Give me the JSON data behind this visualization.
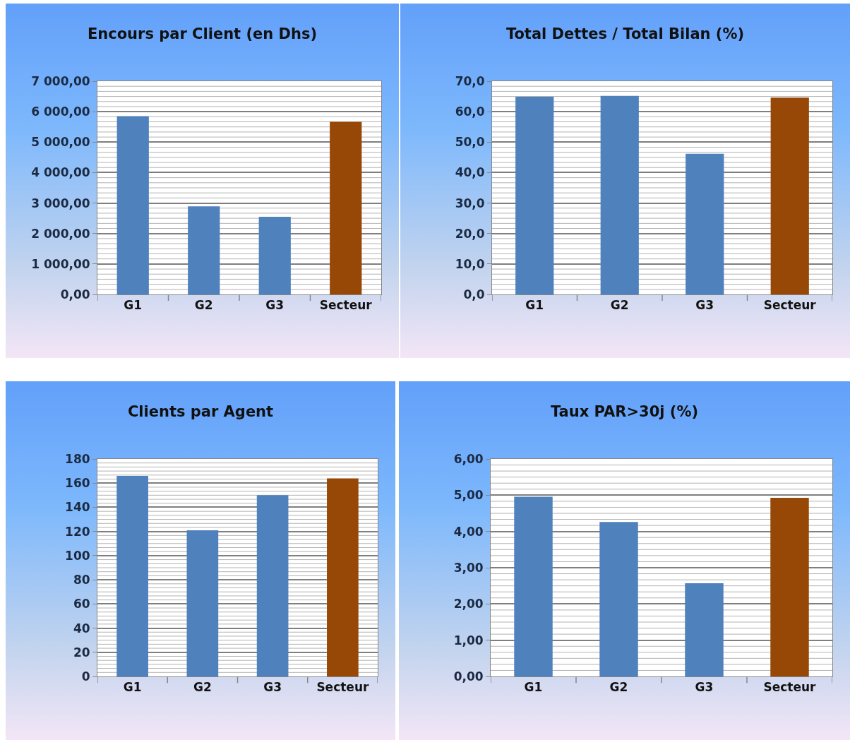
{
  "chart_data": [
    {
      "type": "bar",
      "title": "Encours par Client (en Dhs)",
      "categories": [
        "G1",
        "G2",
        "G3",
        "Secteur"
      ],
      "values": [
        5850,
        2890,
        2550,
        5670
      ],
      "colors": [
        "#4f81bd",
        "#4f81bd",
        "#4f81bd",
        "#974706"
      ],
      "ylim": [
        0,
        7000
      ],
      "yticks": [
        {
          "value": 0,
          "label": "0,00"
        },
        {
          "value": 1000,
          "label": "1 000,00"
        },
        {
          "value": 2000,
          "label": "2 000,00"
        },
        {
          "value": 3000,
          "label": "3 000,00"
        },
        {
          "value": 4000,
          "label": "4 000,00"
        },
        {
          "value": 5000,
          "label": "5 000,00"
        },
        {
          "value": 6000,
          "label": "6 000,00"
        },
        {
          "value": 7000,
          "label": "7 000,00"
        }
      ],
      "grid": "y"
    },
    {
      "type": "bar",
      "title": "Total Dettes / Total Bilan (%)",
      "categories": [
        "G1",
        "G2",
        "G3",
        "Secteur"
      ],
      "values": [
        64.9,
        65.2,
        46.2,
        64.6
      ],
      "colors": [
        "#4f81bd",
        "#4f81bd",
        "#4f81bd",
        "#974706"
      ],
      "ylim": [
        0,
        70
      ],
      "yticks": [
        {
          "value": 0,
          "label": "0,0"
        },
        {
          "value": 10,
          "label": "10,0"
        },
        {
          "value": 20,
          "label": "20,0"
        },
        {
          "value": 30,
          "label": "30,0"
        },
        {
          "value": 40,
          "label": "40,0"
        },
        {
          "value": 50,
          "label": "50,0"
        },
        {
          "value": 60,
          "label": "60,0"
        },
        {
          "value": 70,
          "label": "70,0"
        }
      ],
      "grid": "y"
    },
    {
      "type": "bar",
      "title": "Clients par Agent",
      "categories": [
        "G1",
        "G2",
        "G3",
        "Secteur"
      ],
      "values": [
        166,
        121,
        150,
        164
      ],
      "colors": [
        "#4f81bd",
        "#4f81bd",
        "#4f81bd",
        "#974706"
      ],
      "ylim": [
        0,
        180
      ],
      "yticks": [
        0,
        20,
        40,
        60,
        80,
        100,
        120,
        140,
        160,
        180
      ],
      "grid": "y"
    },
    {
      "type": "bar",
      "title": "Taux PAR>30j (%)",
      "categories": [
        "G1",
        "G2",
        "G3",
        "Secteur"
      ],
      "values": [
        4.96,
        4.26,
        2.57,
        4.93
      ],
      "colors": [
        "#4f81bd",
        "#4f81bd",
        "#4f81bd",
        "#974706"
      ],
      "ylim": [
        0,
        6
      ],
      "yticks": [
        {
          "value": 0,
          "label": "0,00"
        },
        {
          "value": 1,
          "label": "1,00"
        },
        {
          "value": 2,
          "label": "2,00"
        },
        {
          "value": 3,
          "label": "3,00"
        },
        {
          "value": 4,
          "label": "4,00"
        },
        {
          "value": 5,
          "label": "5,00"
        },
        {
          "value": 6,
          "label": "6,00"
        }
      ],
      "grid": "y"
    }
  ]
}
